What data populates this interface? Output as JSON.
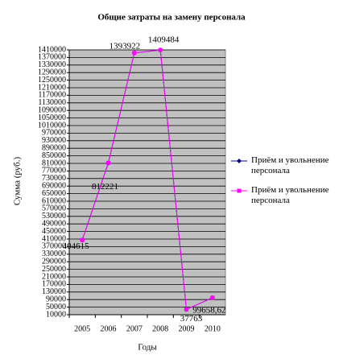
{
  "chart_data": {
    "type": "line",
    "title": "Общие затраты на замену персонала",
    "x_label": "Годы",
    "y_label": "Сумма (руб.)",
    "categories": [
      "2005",
      "2006",
      "2007",
      "2008",
      "2009",
      "2010"
    ],
    "series": [
      {
        "name": "Приём и увольнение персонала",
        "color": "#000080",
        "values": [
          404615,
          812221,
          1393922,
          1409484,
          37763,
          99658.62
        ]
      },
      {
        "name": "Приём и увольнение персонала",
        "color": "#ff00ff",
        "values": [
          404615,
          812221,
          1393922,
          1409484,
          37763,
          99658.62
        ],
        "value_labels": [
          "404615",
          "812221",
          "1393922",
          "1409484",
          "37763",
          "99658,62"
        ]
      }
    ],
    "ylim": [
      10000,
      1410000
    ],
    "yticks": [
      10000,
      50000,
      90000,
      130000,
      170000,
      210000,
      250000,
      290000,
      330000,
      370000,
      410000,
      450000,
      490000,
      530000,
      570000,
      610000,
      650000,
      690000,
      730000,
      770000,
      810000,
      850000,
      890000,
      930000,
      970000,
      1010000,
      1050000,
      1090000,
      1130000,
      1170000,
      1210000,
      1250000,
      1290000,
      1330000,
      1370000,
      1410000
    ],
    "grid": true,
    "plot_background": "#c0c0c0",
    "legend": "right"
  }
}
